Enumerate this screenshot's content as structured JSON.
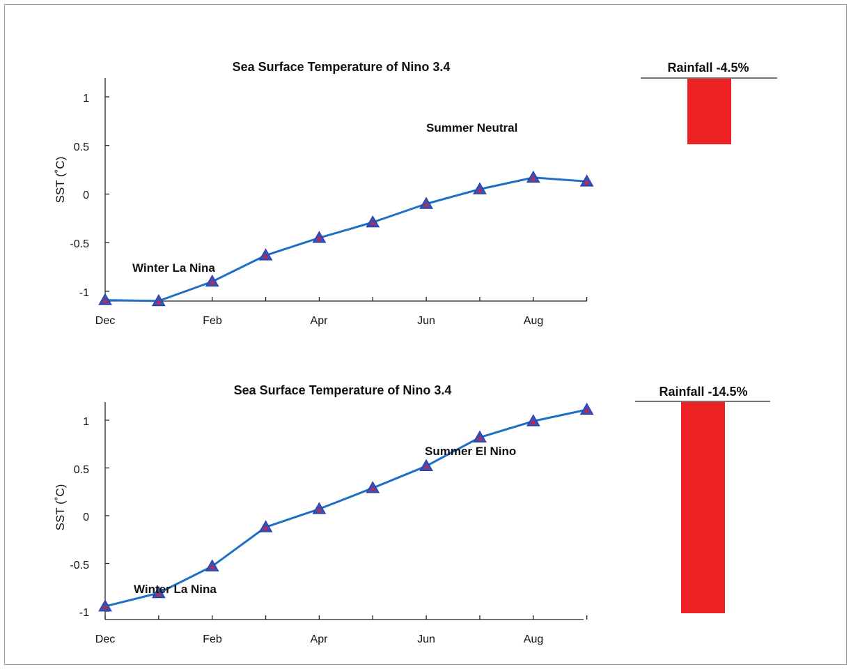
{
  "colors": {
    "line": "#1f6fc7",
    "marker_fill": "#3a4fb4",
    "marker_dot": "#d0243a",
    "bar": "#ee2124",
    "axis": "#222222"
  },
  "chart_data": [
    {
      "type": "line",
      "title": "Sea Surface Temperature of Nino 3.4",
      "ylabel": "SST (˚C)",
      "xlabel": "",
      "x_tick_labels": [
        "Dec",
        "Feb",
        "Apr",
        "Jun",
        "Aug"
      ],
      "y_tick_labels": [
        "1",
        "0.5",
        "0",
        "-0.5",
        "-1"
      ],
      "ylim": [
        -1.1,
        1.2
      ],
      "months": [
        "Dec",
        "Jan",
        "Feb",
        "Mar",
        "Apr",
        "May",
        "Jun",
        "Jul",
        "Aug",
        "Sep"
      ],
      "series": [
        {
          "values": [
            -1.09,
            -1.1,
            -0.9,
            -0.63,
            -0.45,
            -0.29,
            -0.1,
            0.05,
            0.17,
            0.13
          ]
        }
      ],
      "annotations": [
        {
          "text": "Winter La Nina",
          "month_index": 1.2,
          "value": -0.75
        },
        {
          "text": "Summer Neutral",
          "month_index": 7.0,
          "value": 0.7
        }
      ]
    },
    {
      "type": "line",
      "title": "Sea Surface Temperature of Nino 3.4",
      "ylabel": "SST (˚C)",
      "xlabel": "",
      "x_tick_labels": [
        "Dec",
        "Feb",
        "Apr",
        "Jun",
        "Aug"
      ],
      "y_tick_labels": [
        "1",
        "0.5",
        "0",
        "-0.5",
        "-1"
      ],
      "ylim": [
        -1.1,
        1.2
      ],
      "months": [
        "Dec",
        "Jan",
        "Feb",
        "Mar",
        "Apr",
        "May",
        "Jun",
        "Jul",
        "Aug",
        "Sep"
      ],
      "series": [
        {
          "values": [
            -0.95,
            -0.81,
            -0.53,
            -0.12,
            0.07,
            0.29,
            0.52,
            0.82,
            0.99,
            1.11
          ]
        }
      ],
      "annotations": [
        {
          "text": "Winter La Nina",
          "month_index": 1.4,
          "value": -0.75
        },
        {
          "text": "Summer El Nino",
          "month_index": 7.3,
          "value": 0.68
        }
      ]
    },
    {
      "type": "bar",
      "title": "Rainfall -4.5%",
      "values": [
        -4.5
      ],
      "max_abs": 14.5
    },
    {
      "type": "bar",
      "title": "Rainfall -14.5%",
      "values": [
        -14.5
      ],
      "max_abs": 14.5
    }
  ]
}
